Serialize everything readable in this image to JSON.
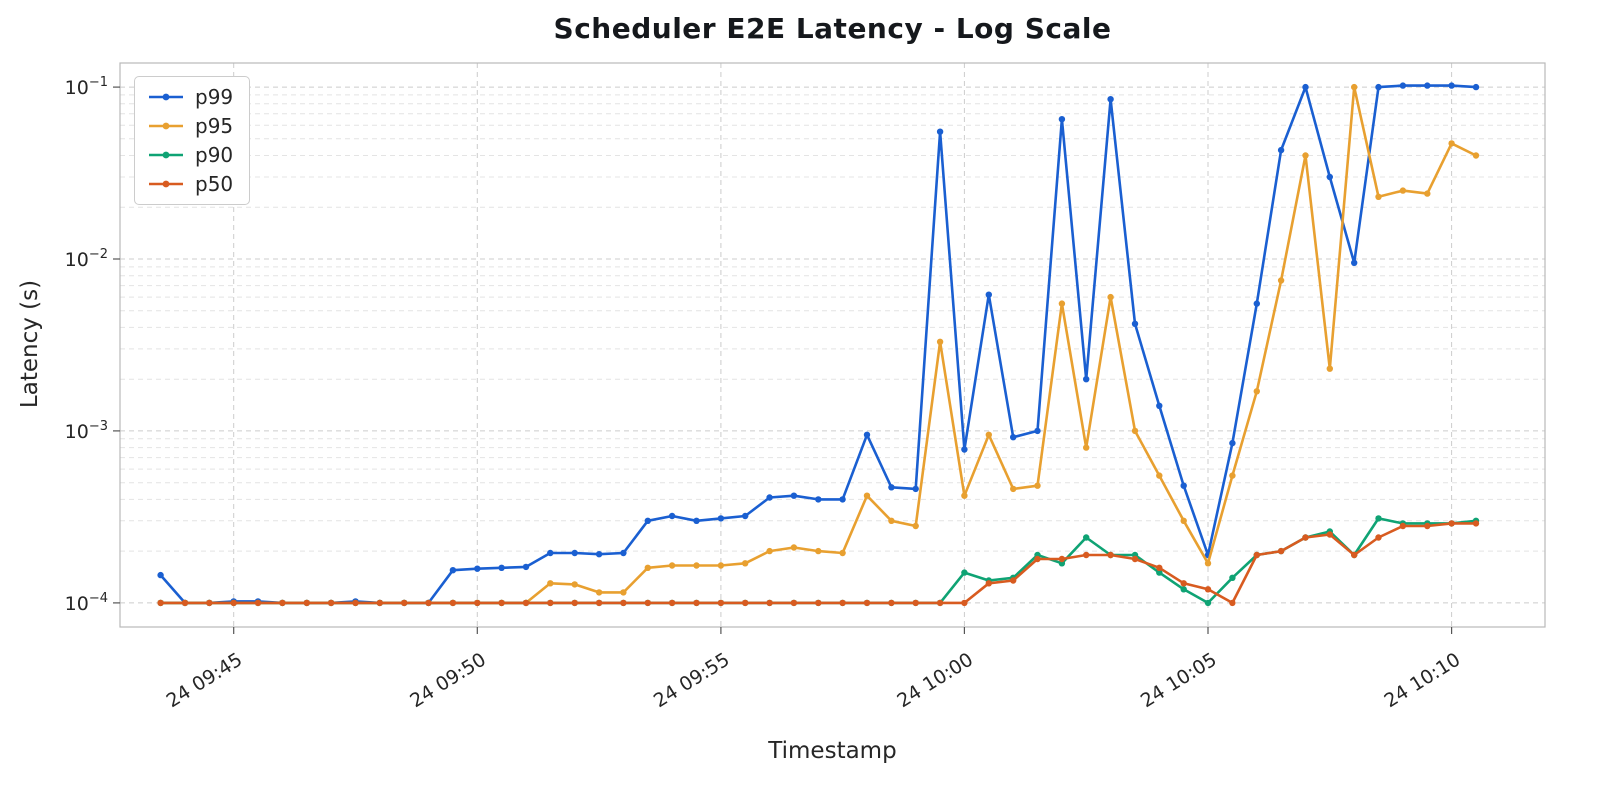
{
  "title": "Scheduler E2E Latency - Log Scale",
  "chart_data": {
    "type": "line",
    "title": "Scheduler E2E Latency - Log Scale",
    "xlabel": "Timestamp",
    "ylabel": "Latency (s)",
    "y_scale": "log",
    "ylim": [
      7.24e-05,
      0.138
    ],
    "y_ticks": [
      -4,
      -3,
      -2,
      -1
    ],
    "grid": true,
    "grid_major_color": "#cccccc",
    "grid_minor_color": "#e4e4e4",
    "legend_position": "upper left",
    "x_range": [
      "09:42:40",
      "10:11:55"
    ],
    "x_ticks": [
      "24 09:45",
      "24 09:50",
      "24 09:55",
      "24 10:00",
      "24 10:05",
      "24 10:10"
    ],
    "x_tick_times": [
      "09:45:00",
      "09:50:00",
      "09:55:00",
      "10:00:00",
      "10:05:00",
      "10:10:00"
    ],
    "timestamps": [
      "09:43:30",
      "09:44:00",
      "09:44:30",
      "09:45:00",
      "09:45:30",
      "09:46:00",
      "09:46:30",
      "09:47:00",
      "09:47:30",
      "09:48:00",
      "09:48:30",
      "09:49:00",
      "09:49:30",
      "09:50:00",
      "09:50:30",
      "09:51:00",
      "09:51:30",
      "09:52:00",
      "09:52:30",
      "09:53:00",
      "09:53:30",
      "09:54:00",
      "09:54:30",
      "09:55:00",
      "09:55:30",
      "09:56:00",
      "09:56:30",
      "09:57:00",
      "09:57:30",
      "09:58:00",
      "09:58:30",
      "09:59:00",
      "09:59:30",
      "10:00:00",
      "10:00:30",
      "10:01:00",
      "10:01:30",
      "10:02:00",
      "10:02:30",
      "10:03:00",
      "10:03:30",
      "10:04:00",
      "10:04:30",
      "10:05:00",
      "10:05:30",
      "10:06:00",
      "10:06:30",
      "10:07:00",
      "10:07:30",
      "10:08:00",
      "10:08:30",
      "10:09:00",
      "10:09:30",
      "10:10:00",
      "10:10:30"
    ],
    "series": [
      {
        "name": "p99",
        "color": "#1a5fd1",
        "values": [
          0.000145,
          0.0001,
          0.0001,
          0.000102,
          0.000102,
          0.0001,
          0.0001,
          0.0001,
          0.000102,
          0.0001,
          0.0001,
          0.0001,
          0.000155,
          0.000158,
          0.00016,
          0.000162,
          0.000195,
          0.000195,
          0.000192,
          0.000195,
          0.0003,
          0.00032,
          0.0003,
          0.00031,
          0.00032,
          0.00041,
          0.00042,
          0.0004,
          0.0004,
          0.00095,
          0.00047,
          0.00046,
          0.055,
          0.00078,
          0.0062,
          0.00092,
          0.001,
          0.065,
          0.002,
          0.085,
          0.0042,
          0.0014,
          0.00048,
          0.00019,
          0.00085,
          0.0055,
          0.043,
          0.1,
          0.03,
          0.0095,
          0.1,
          0.102,
          0.102,
          0.102,
          0.1
        ]
      },
      {
        "name": "p95",
        "color": "#e8a030",
        "values": [
          0.0001,
          0.0001,
          0.0001,
          0.0001,
          0.0001,
          0.0001,
          0.0001,
          0.0001,
          0.0001,
          0.0001,
          0.0001,
          0.0001,
          0.0001,
          0.0001,
          0.0001,
          0.0001,
          0.00013,
          0.000128,
          0.000115,
          0.000115,
          0.00016,
          0.000165,
          0.000165,
          0.000165,
          0.00017,
          0.0002,
          0.00021,
          0.0002,
          0.000195,
          0.00042,
          0.0003,
          0.00028,
          0.0033,
          0.00042,
          0.00095,
          0.00046,
          0.00048,
          0.0055,
          0.0008,
          0.006,
          0.001,
          0.00055,
          0.0003,
          0.00017,
          0.00055,
          0.0017,
          0.0075,
          0.04,
          0.0023,
          0.1,
          0.023,
          0.025,
          0.024,
          0.047,
          0.04
        ]
      },
      {
        "name": "p90",
        "color": "#0fa374",
        "values": [
          0.0001,
          0.0001,
          0.0001,
          0.0001,
          0.0001,
          0.0001,
          0.0001,
          0.0001,
          0.0001,
          0.0001,
          0.0001,
          0.0001,
          0.0001,
          0.0001,
          0.0001,
          0.0001,
          0.0001,
          0.0001,
          0.0001,
          0.0001,
          0.0001,
          0.0001,
          0.0001,
          0.0001,
          0.0001,
          0.0001,
          0.0001,
          0.0001,
          0.0001,
          0.0001,
          0.0001,
          0.0001,
          0.0001,
          0.00015,
          0.000135,
          0.00014,
          0.00019,
          0.00017,
          0.00024,
          0.00019,
          0.00019,
          0.00015,
          0.00012,
          0.0001,
          0.00014,
          0.00019,
          0.0002,
          0.00024,
          0.00026,
          0.00019,
          0.00031,
          0.00029,
          0.00029,
          0.00029,
          0.0003
        ]
      },
      {
        "name": "p50",
        "color": "#d85b20",
        "values": [
          0.0001,
          0.0001,
          0.0001,
          0.0001,
          0.0001,
          0.0001,
          0.0001,
          0.0001,
          0.0001,
          0.0001,
          0.0001,
          0.0001,
          0.0001,
          0.0001,
          0.0001,
          0.0001,
          0.0001,
          0.0001,
          0.0001,
          0.0001,
          0.0001,
          0.0001,
          0.0001,
          0.0001,
          0.0001,
          0.0001,
          0.0001,
          0.0001,
          0.0001,
          0.0001,
          0.0001,
          0.0001,
          0.0001,
          0.0001,
          0.00013,
          0.000135,
          0.00018,
          0.00018,
          0.00019,
          0.00019,
          0.00018,
          0.00016,
          0.00013,
          0.00012,
          0.0001,
          0.00019,
          0.0002,
          0.00024,
          0.00025,
          0.00019,
          0.00024,
          0.00028,
          0.00028,
          0.00029,
          0.00029
        ]
      }
    ]
  }
}
